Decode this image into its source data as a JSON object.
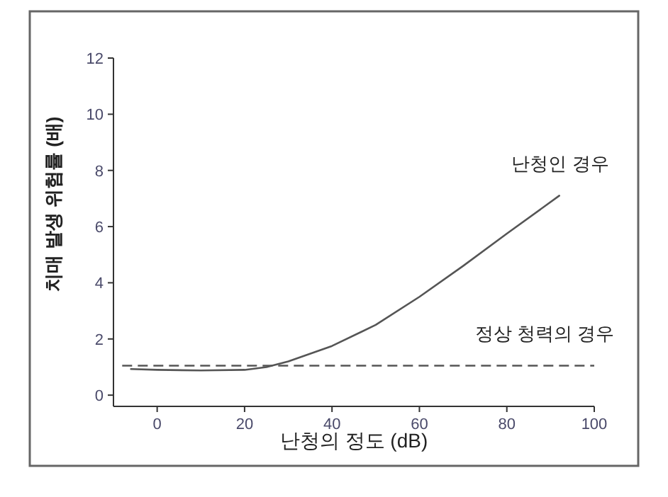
{
  "chart_data": {
    "type": "line",
    "xlabel": "난청의 정도 (dB)",
    "ylabel": "치매 발생 위험률 (배)",
    "xlim": [
      -10,
      100
    ],
    "ylim": [
      -0.4,
      12
    ],
    "xticks": [
      0,
      20,
      40,
      60,
      80,
      100
    ],
    "yticks": [
      0,
      2,
      4,
      6,
      8,
      10,
      12
    ],
    "grid": false,
    "marker": "none",
    "series": [
      {
        "name": "난청인 경우",
        "color": "#555555",
        "line_style": "solid",
        "x": [
          -6,
          0,
          10,
          20,
          25,
          30,
          40,
          50,
          60,
          70,
          80,
          92
        ],
        "values": [
          0.93,
          0.9,
          0.88,
          0.9,
          1.0,
          1.2,
          1.75,
          2.5,
          3.5,
          4.6,
          5.75,
          7.1
        ]
      },
      {
        "name": "정상 청력의 경우",
        "color": "#555555",
        "line_style": "dashed",
        "x": [
          -8,
          100
        ],
        "values": [
          1.05,
          1.05
        ]
      }
    ]
  }
}
